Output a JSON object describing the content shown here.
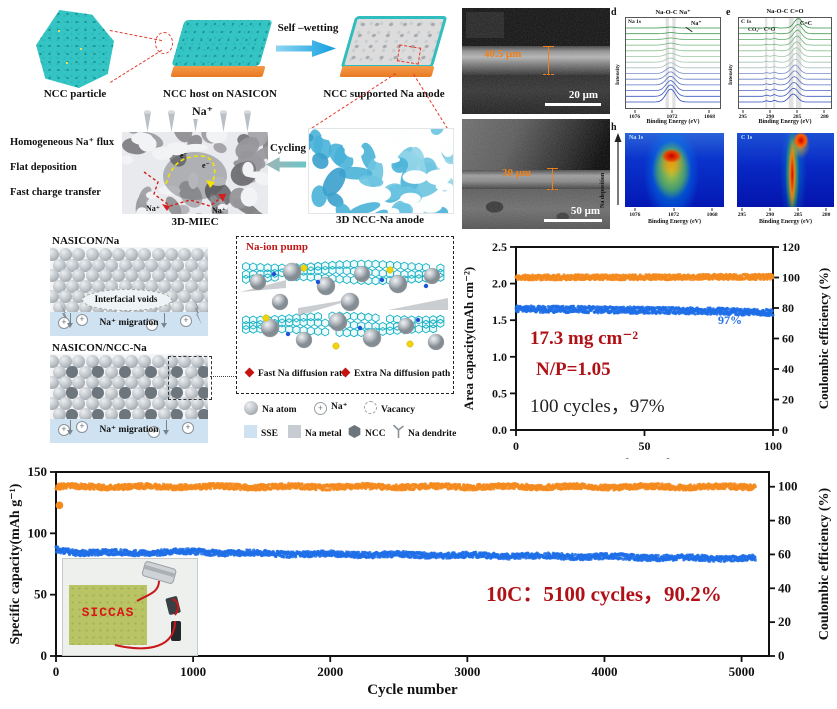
{
  "colors": {
    "capacity_blue": "#1F6FE8",
    "efficiency_orange": "#F5891D",
    "annotation_red": "#B01116",
    "teal": "#2FBFBF",
    "substrate_orange": "#F08A3C",
    "sem_orange": "#F08018",
    "sse_blue": "#CFE2F2"
  },
  "flow": {
    "particle": "NCC particle",
    "host": "NCC host on NASICON",
    "arrow": "Self –wetting",
    "anode": "NCC supported Na anode"
  },
  "miec": {
    "flux": "Homogeneous Na⁺ flux",
    "flat": "Flat deposition",
    "charge": "Fast charge transfer",
    "na": "Na⁺",
    "e1": "e⁻",
    "na_p1": "Na⁺",
    "na_p2": "Na⁺",
    "label": "3D-MIEC",
    "cycling": "Cycling",
    "ncc_na": "3D NCC-Na anode"
  },
  "interfaces": {
    "t1": "NASICON/Na",
    "voids": "Interfacial voids",
    "mig1": "Na⁺ migration",
    "t2": "NASICON/NCC-Na",
    "mig2": "Na⁺ migration"
  },
  "pump": {
    "title": "Na-ion pump",
    "b1": "Fast Na diffusion rate",
    "b2": "Extra Na diffusion path"
  },
  "legend": {
    "na_atom": "Na atom",
    "na_ion": "Na⁺",
    "vacancy": "Vacancy",
    "sse": "SSE",
    "na_metal": "Na metal",
    "ncc": "NCC",
    "dendrite": "Na dendrite"
  },
  "sem": {
    "top_thickness": "40.5 μm",
    "top_scale": "20 μm",
    "bottom_thickness": "30 μm",
    "bottom_scale": "50 μm"
  },
  "xps": {
    "d": {
      "letter": "d",
      "title": "Na-O-C Na⁺",
      "inner": "Na 1s",
      "annotation": "Na⁺",
      "xticks": [
        "1076",
        "1072",
        "1068"
      ],
      "xlabel": "Binding Energy (eV)",
      "ylabel": "Intensity"
    },
    "e": {
      "letter": "e",
      "title": "Na-O-C C=O",
      "inner": "C 1s",
      "label1": "CO₃²⁻ C=O",
      "label2": "C=C",
      "xticks": [
        "295",
        "290",
        "285",
        "280"
      ],
      "xlabel": "Binding Energy (eV)",
      "ylabel": "Intensity"
    },
    "h": {
      "letter": "h",
      "left_inner": "Na 1s",
      "right_inner": "C 1s",
      "ylabel": "Na deposition",
      "left_xticks": [
        "1076",
        "1072",
        "1068"
      ],
      "right_xticks": [
        "295",
        "290",
        "285",
        "280"
      ],
      "xlabel": "Binding Energy (eV)"
    }
  },
  "mid_chart": {
    "ann1": "17.3 mg cm⁻²",
    "ann2": "N/P=1.05",
    "ann3": "100 cycles，97%",
    "ce_label": "97%"
  },
  "bottom_chart": {
    "annotation": "10C：5100 cycles，90.2%",
    "inset_text": "SICCAS"
  },
  "chart_data": [
    {
      "id": "area_capacity",
      "type": "scatter",
      "xlabel": "Cycle number",
      "ylabel_left": "Area capacity(mAh cm⁻²)",
      "ylabel_right": "Coulombic efficiency (%)",
      "xlim": [
        0,
        100
      ],
      "xticks": [
        0,
        50,
        100
      ],
      "ylim_left": [
        0,
        2.5
      ],
      "yticks_left": [
        "0.0",
        "0.5",
        "1.0",
        "1.5",
        "2.0",
        "2.5"
      ],
      "ylim_right": [
        0,
        120
      ],
      "yticks_right": [
        0,
        20,
        40,
        60,
        80,
        100,
        120
      ],
      "series": [
        {
          "name": "Coulombic efficiency",
          "axis": "right",
          "color": "#F5891D",
          "x": [
            0,
            100
          ],
          "y": [
            100,
            100
          ],
          "band": 3.5
        },
        {
          "name": "Area capacity",
          "axis": "left",
          "color": "#1F6FE8",
          "x": [
            0,
            20,
            50,
            80,
            100
          ],
          "y": [
            1.65,
            1.65,
            1.64,
            1.63,
            1.61
          ],
          "band": 0.09
        }
      ],
      "annotations": [
        "17.3 mg cm⁻²",
        "N/P=1.05",
        "100 cycles，97%",
        "97%"
      ]
    },
    {
      "id": "specific_capacity",
      "type": "scatter",
      "xlabel": "Cycle number",
      "ylabel_left": "Specific capacity(mAh g⁻¹)",
      "ylabel_right": "Coulombic efficiency (%)",
      "xlim": [
        0,
        5200
      ],
      "xticks": [
        0,
        1000,
        2000,
        3000,
        4000,
        5000
      ],
      "ylim_left": [
        0,
        150
      ],
      "yticks_left": [
        0,
        50,
        100,
        150
      ],
      "ylim_right": [
        0,
        108.7
      ],
      "yticks_right": [
        0,
        20,
        40,
        60,
        80,
        100
      ],
      "series": [
        {
          "name": "Coulombic efficiency",
          "axis": "right",
          "color": "#F5891D",
          "x": [
            0,
            5100
          ],
          "y": [
            100,
            100
          ],
          "band": 3.2,
          "dots": [
            {
              "x": 25,
              "y": 89
            }
          ]
        },
        {
          "name": "Specific capacity",
          "axis": "left",
          "color": "#1F6FE8",
          "x": [
            0,
            150,
            500,
            1000,
            1500,
            2000,
            2500,
            3000,
            3500,
            4000,
            4500,
            5100
          ],
          "y": [
            87,
            84.5,
            84,
            85,
            83.5,
            83,
            82.5,
            82,
            81.5,
            81,
            80,
            79.5
          ],
          "band": 4.5
        }
      ],
      "annotations": [
        "10C：5100 cycles，90.2%"
      ]
    },
    {
      "id": "xps_na1s",
      "type": "line",
      "title": "Na-O-C Na⁺",
      "inner": "Na 1s",
      "xticks": [
        1076,
        1072,
        1068
      ],
      "xlabel": "Binding Energy (eV)",
      "ylabel": "Intensity",
      "peak_ev": 1072,
      "curves": 14
    },
    {
      "id": "xps_c1s",
      "type": "line",
      "title": "Na-O-C C=O",
      "inner": "C 1s",
      "xticks": [
        295,
        290,
        285,
        280
      ],
      "xlabel": "Binding Energy (eV)",
      "ylabel": "Intensity",
      "peaks_ev": [
        285,
        286.5,
        289,
        290.5
      ],
      "curves": 14
    },
    {
      "id": "map_na1s",
      "type": "heatmap",
      "inner": "Na 1s",
      "xticks": [
        1076,
        1072,
        1068
      ],
      "xlabel": "Binding Energy (eV)",
      "ylabel": "Na deposition",
      "hot_ev": 1072
    },
    {
      "id": "map_c1s",
      "type": "heatmap",
      "inner": "C 1s",
      "xticks": [
        295,
        290,
        285,
        280
      ],
      "xlabel": "Binding Energy (eV)",
      "ylabel": "Na deposition",
      "hot_ev": 286
    }
  ]
}
